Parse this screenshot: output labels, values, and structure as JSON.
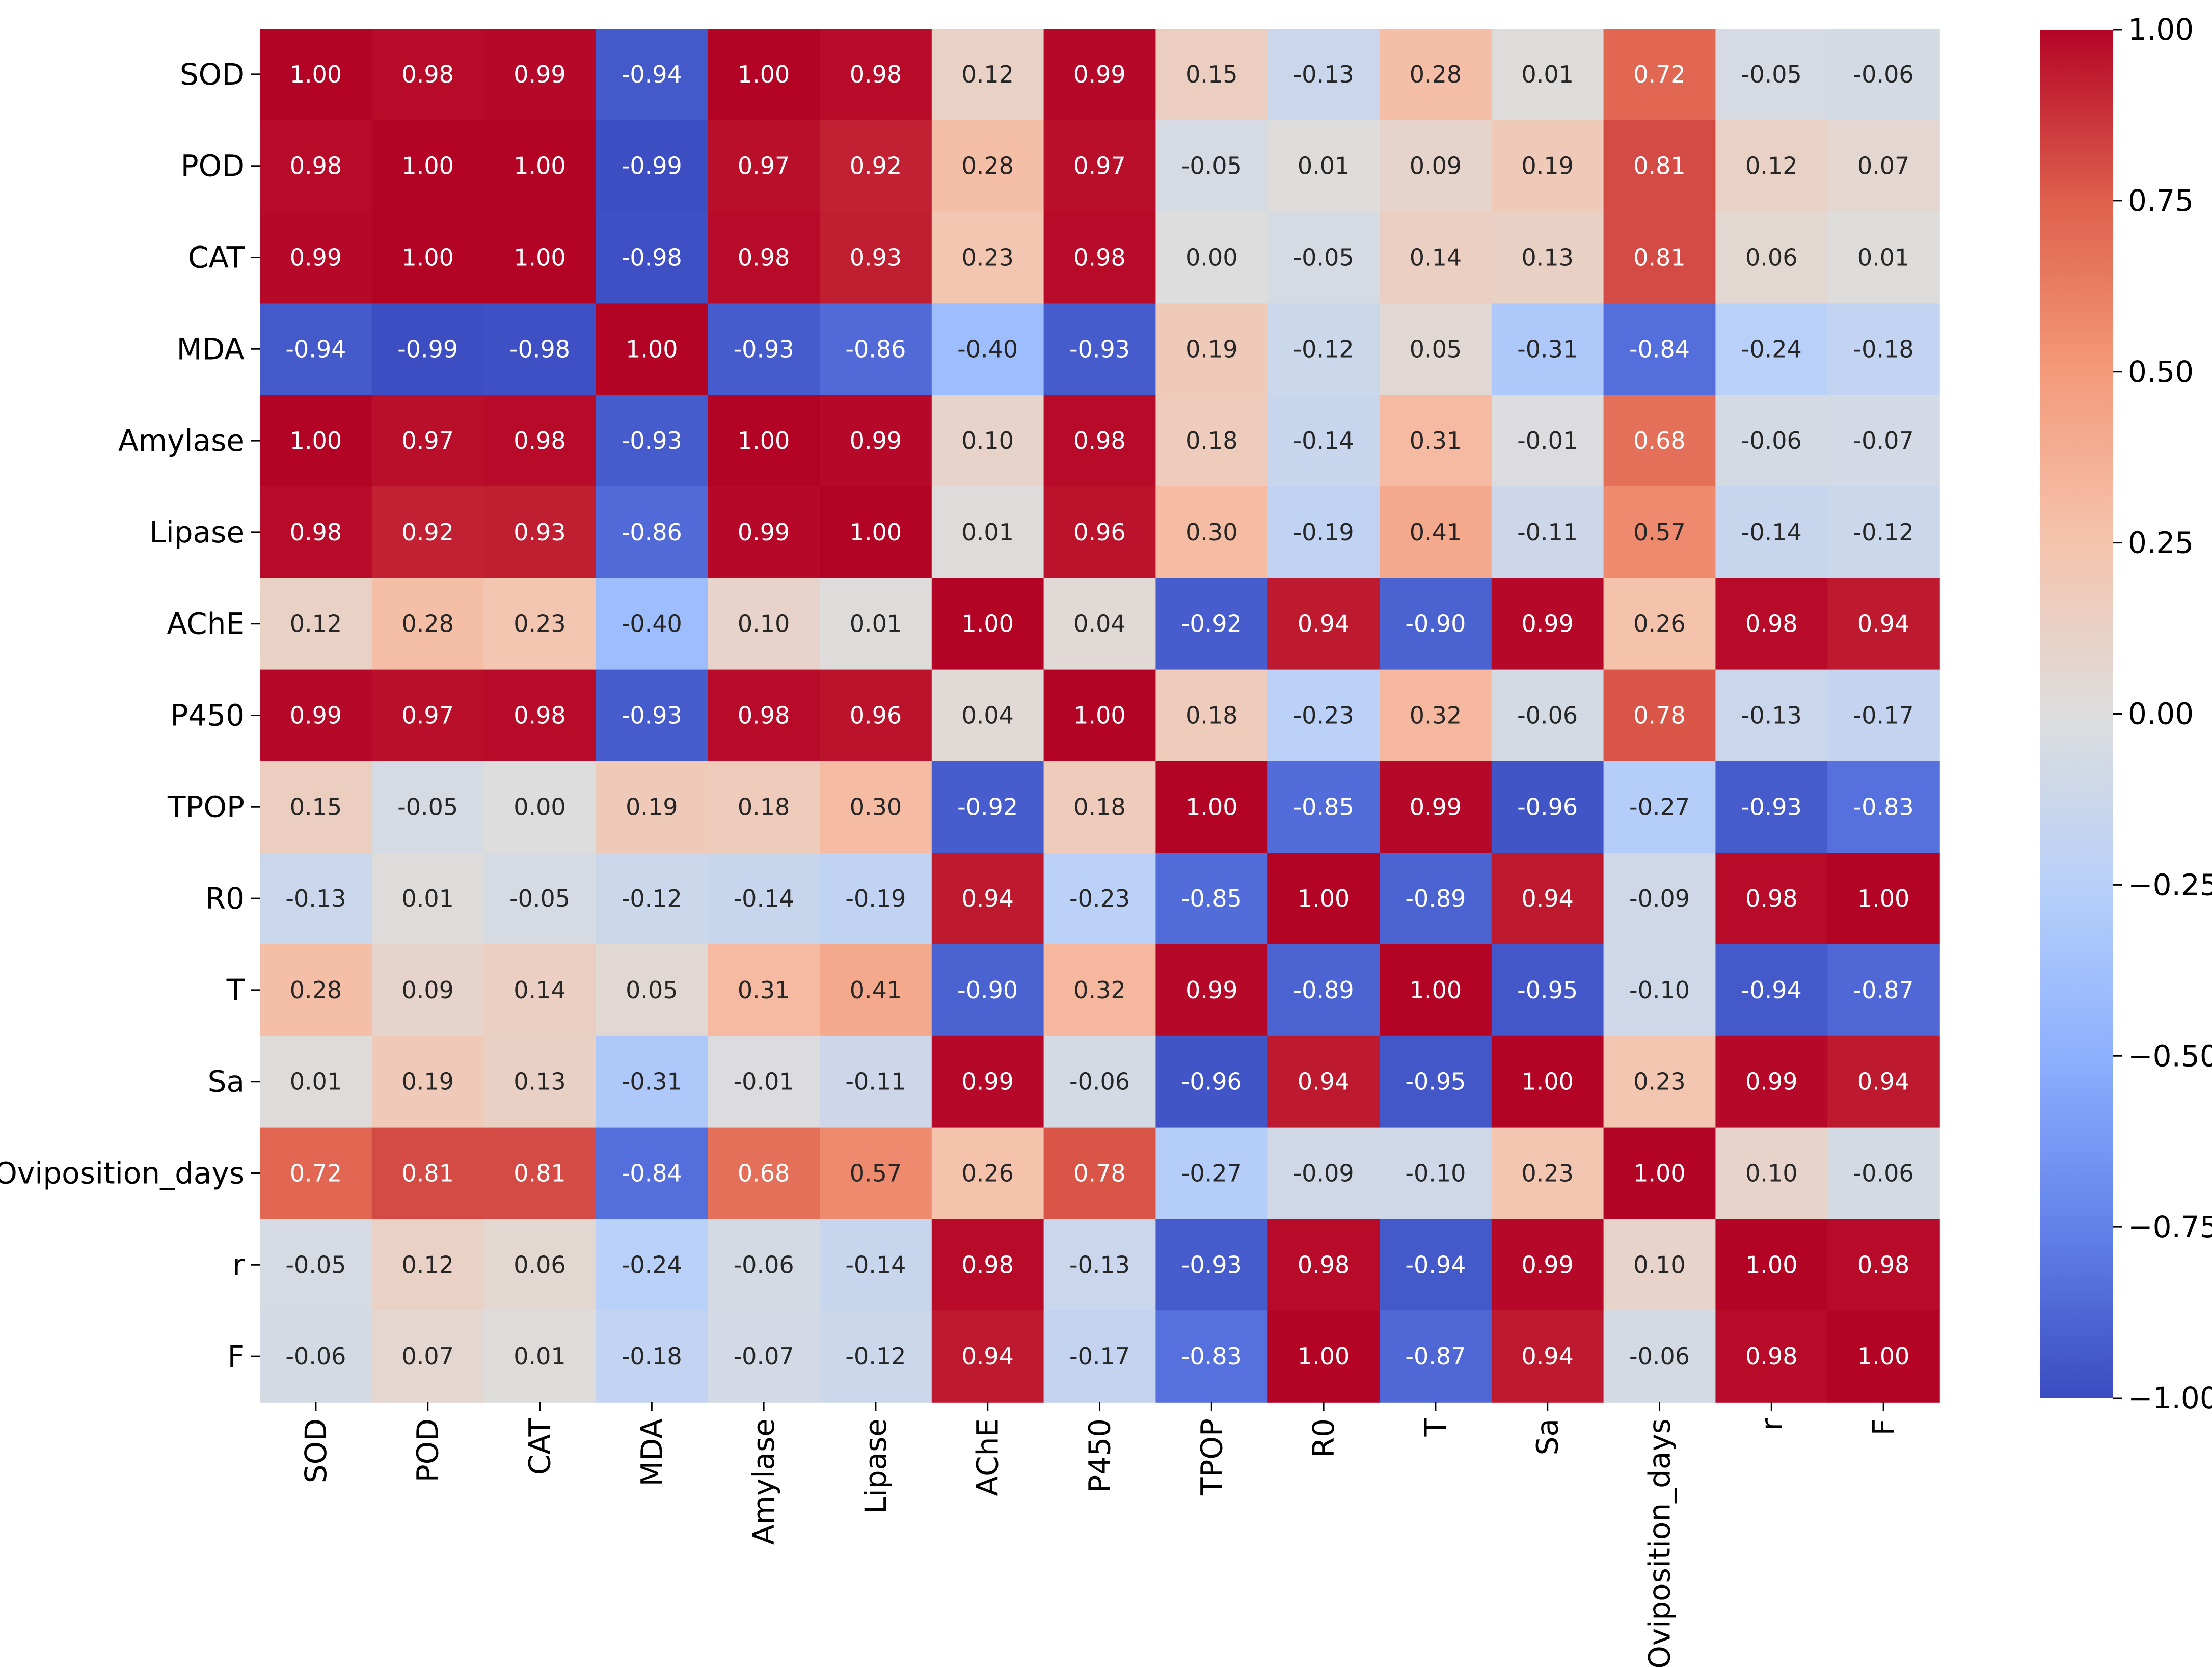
{
  "chart_data": {
    "type": "heatmap",
    "title": "",
    "xlabel": "",
    "ylabel": "",
    "colormap": "coolwarm",
    "vmin": -1.0,
    "vmax": 1.0,
    "rows": [
      "SOD",
      "POD",
      "CAT",
      "MDA",
      "Amylase",
      "Lipase",
      "AChE",
      "P450",
      "TPOP",
      "R0",
      "T",
      "Sa",
      "Oviposition_days",
      "r",
      "F"
    ],
    "columns": [
      "SOD",
      "POD",
      "CAT",
      "MDA",
      "Amylase",
      "Lipase",
      "AChE",
      "P450",
      "TPOP",
      "R0",
      "T",
      "Sa",
      "Oviposition_days",
      "r",
      "F"
    ],
    "values": [
      [
        1.0,
        0.98,
        0.99,
        -0.94,
        1.0,
        0.98,
        0.12,
        0.99,
        0.15,
        -0.13,
        0.28,
        0.01,
        0.72,
        -0.05,
        -0.06
      ],
      [
        0.98,
        1.0,
        1.0,
        -0.99,
        0.97,
        0.92,
        0.28,
        0.97,
        -0.05,
        0.01,
        0.09,
        0.19,
        0.81,
        0.12,
        0.07
      ],
      [
        0.99,
        1.0,
        1.0,
        -0.98,
        0.98,
        0.93,
        0.23,
        0.98,
        0.0,
        -0.05,
        0.14,
        0.13,
        0.81,
        0.06,
        0.01
      ],
      [
        -0.94,
        -0.99,
        -0.98,
        1.0,
        -0.93,
        -0.86,
        -0.4,
        -0.93,
        0.19,
        -0.12,
        0.05,
        -0.31,
        -0.84,
        -0.24,
        -0.18
      ],
      [
        1.0,
        0.97,
        0.98,
        -0.93,
        1.0,
        0.99,
        0.1,
        0.98,
        0.18,
        -0.14,
        0.31,
        -0.01,
        0.68,
        -0.06,
        -0.07
      ],
      [
        0.98,
        0.92,
        0.93,
        -0.86,
        0.99,
        1.0,
        0.01,
        0.96,
        0.3,
        -0.19,
        0.41,
        -0.11,
        0.57,
        -0.14,
        -0.12
      ],
      [
        0.12,
        0.28,
        0.23,
        -0.4,
        0.1,
        0.01,
        1.0,
        0.04,
        -0.92,
        0.94,
        -0.9,
        0.99,
        0.26,
        0.98,
        0.94
      ],
      [
        0.99,
        0.97,
        0.98,
        -0.93,
        0.98,
        0.96,
        0.04,
        1.0,
        0.18,
        -0.23,
        0.32,
        -0.06,
        0.78,
        -0.13,
        -0.17
      ],
      [
        0.15,
        -0.05,
        0.0,
        0.19,
        0.18,
        0.3,
        -0.92,
        0.18,
        1.0,
        -0.85,
        0.99,
        -0.96,
        -0.27,
        -0.93,
        -0.83
      ],
      [
        -0.13,
        0.01,
        -0.05,
        -0.12,
        -0.14,
        -0.19,
        0.94,
        -0.23,
        -0.85,
        1.0,
        -0.89,
        0.94,
        -0.09,
        0.98,
        1.0
      ],
      [
        0.28,
        0.09,
        0.14,
        0.05,
        0.31,
        0.41,
        -0.9,
        0.32,
        0.99,
        -0.89,
        1.0,
        -0.95,
        -0.1,
        -0.94,
        -0.87
      ],
      [
        0.01,
        0.19,
        0.13,
        -0.31,
        -0.01,
        -0.11,
        0.99,
        -0.06,
        -0.96,
        0.94,
        -0.95,
        1.0,
        0.23,
        0.99,
        0.94
      ],
      [
        0.72,
        0.81,
        0.81,
        -0.84,
        0.68,
        0.57,
        0.26,
        0.78,
        -0.27,
        -0.09,
        -0.1,
        0.23,
        1.0,
        0.1,
        -0.06
      ],
      [
        -0.05,
        0.12,
        0.06,
        -0.24,
        -0.06,
        -0.14,
        0.98,
        -0.13,
        -0.93,
        0.98,
        -0.94,
        0.99,
        0.1,
        1.0,
        0.98
      ],
      [
        -0.06,
        0.07,
        0.01,
        -0.18,
        -0.07,
        -0.12,
        0.94,
        -0.17,
        -0.83,
        1.0,
        -0.87,
        0.94,
        -0.06,
        0.98,
        1.0
      ]
    ],
    "colorbar": {
      "ticks": [
        1.0,
        0.75,
        0.5,
        0.25,
        0.0,
        -0.25,
        -0.5,
        -0.75,
        -1.0
      ],
      "tick_labels": [
        "1.00",
        "0.75",
        "0.50",
        "0.25",
        "0.00",
        "−0.25",
        "−0.50",
        "−0.75",
        "−1.00"
      ]
    },
    "annotate": true,
    "annotation_format": "0.00"
  }
}
